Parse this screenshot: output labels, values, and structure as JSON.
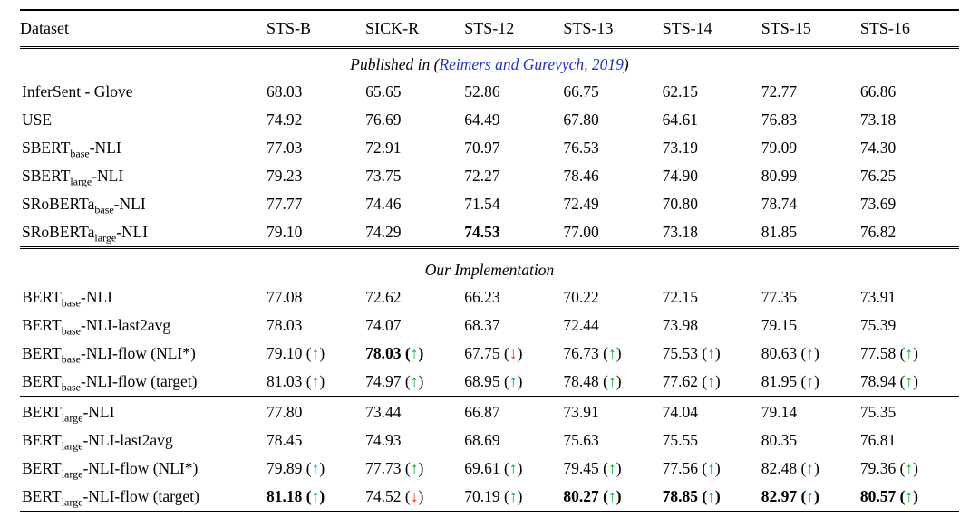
{
  "page": {
    "background": "#ffffff"
  },
  "colors": {
    "text": "#000000",
    "up_arrow": "#00b22d",
    "down_arrow": "#ff2200",
    "citation": "#2233cc"
  },
  "glyphs": {
    "up_arrow": "↑",
    "down_arrow": "↓"
  },
  "table": {
    "columns": [
      "Dataset",
      "STS-B",
      "SICK-R",
      "STS-12",
      "STS-13",
      "STS-14",
      "STS-15",
      "STS-16"
    ],
    "sections": [
      {
        "title_prefix": "Published in (",
        "citation": "Reimers and Gurevych, 2019",
        "title_suffix": ")",
        "groups": [
          {
            "rows": [
              {
                "label": {
                  "pre": "InferSent - Glove",
                  "sub": "",
                  "post": ""
                },
                "cells": [
                  {
                    "v": "68.03"
                  },
                  {
                    "v": "65.65"
                  },
                  {
                    "v": "52.86"
                  },
                  {
                    "v": "66.75"
                  },
                  {
                    "v": "62.15"
                  },
                  {
                    "v": "72.77"
                  },
                  {
                    "v": "66.86"
                  }
                ]
              },
              {
                "label": {
                  "pre": "USE",
                  "sub": "",
                  "post": ""
                },
                "cells": [
                  {
                    "v": "74.92"
                  },
                  {
                    "v": "76.69"
                  },
                  {
                    "v": "64.49"
                  },
                  {
                    "v": "67.80"
                  },
                  {
                    "v": "64.61"
                  },
                  {
                    "v": "76.83"
                  },
                  {
                    "v": "73.18"
                  }
                ]
              },
              {
                "label": {
                  "pre": "SBERT",
                  "sub": "base",
                  "post": "-NLI"
                },
                "cells": [
                  {
                    "v": "77.03"
                  },
                  {
                    "v": "72.91"
                  },
                  {
                    "v": "70.97"
                  },
                  {
                    "v": "76.53"
                  },
                  {
                    "v": "73.19"
                  },
                  {
                    "v": "79.09"
                  },
                  {
                    "v": "74.30"
                  }
                ]
              },
              {
                "label": {
                  "pre": "SBERT",
                  "sub": "large",
                  "post": "-NLI"
                },
                "cells": [
                  {
                    "v": "79.23"
                  },
                  {
                    "v": "73.75"
                  },
                  {
                    "v": "72.27"
                  },
                  {
                    "v": "78.46"
                  },
                  {
                    "v": "74.90"
                  },
                  {
                    "v": "80.99"
                  },
                  {
                    "v": "76.25"
                  }
                ]
              },
              {
                "label": {
                  "pre": "SRoBERTa",
                  "sub": "base",
                  "post": "-NLI"
                },
                "cells": [
                  {
                    "v": "77.77"
                  },
                  {
                    "v": "74.46"
                  },
                  {
                    "v": "71.54"
                  },
                  {
                    "v": "72.49"
                  },
                  {
                    "v": "70.80"
                  },
                  {
                    "v": "78.74"
                  },
                  {
                    "v": "73.69"
                  }
                ]
              },
              {
                "label": {
                  "pre": "SRoBERTa",
                  "sub": "large",
                  "post": "-NLI"
                },
                "cells": [
                  {
                    "v": "79.10"
                  },
                  {
                    "v": "74.29"
                  },
                  {
                    "v": "74.53",
                    "b": true
                  },
                  {
                    "v": "77.00"
                  },
                  {
                    "v": "73.18"
                  },
                  {
                    "v": "81.85"
                  },
                  {
                    "v": "76.82"
                  }
                ]
              }
            ]
          }
        ]
      },
      {
        "title_prefix": "Our Implementation",
        "citation": "",
        "title_suffix": "",
        "groups": [
          {
            "rows": [
              {
                "label": {
                  "pre": "BERT",
                  "sub": "base",
                  "post": "-NLI"
                },
                "cells": [
                  {
                    "v": "77.08"
                  },
                  {
                    "v": "72.62"
                  },
                  {
                    "v": "66.23"
                  },
                  {
                    "v": "70.22"
                  },
                  {
                    "v": "72.15"
                  },
                  {
                    "v": "77.35"
                  },
                  {
                    "v": "73.91"
                  }
                ]
              },
              {
                "label": {
                  "pre": "BERT",
                  "sub": "base",
                  "post": "-NLI-last2avg"
                },
                "cells": [
                  {
                    "v": "78.03"
                  },
                  {
                    "v": "74.07"
                  },
                  {
                    "v": "68.37"
                  },
                  {
                    "v": "72.44"
                  },
                  {
                    "v": "73.98"
                  },
                  {
                    "v": "79.15"
                  },
                  {
                    "v": "75.39"
                  }
                ]
              },
              {
                "label": {
                  "pre": "BERT",
                  "sub": "base",
                  "post": "-NLI-flow (NLI*)"
                },
                "cells": [
                  {
                    "v": "79.10",
                    "a": "up"
                  },
                  {
                    "v": "78.03",
                    "a": "up",
                    "b": true
                  },
                  {
                    "v": "67.75",
                    "a": "down"
                  },
                  {
                    "v": "76.73",
                    "a": "up"
                  },
                  {
                    "v": "75.53",
                    "a": "up"
                  },
                  {
                    "v": "80.63",
                    "a": "up"
                  },
                  {
                    "v": "77.58",
                    "a": "up"
                  }
                ]
              },
              {
                "label": {
                  "pre": "BERT",
                  "sub": "base",
                  "post": "-NLI-flow (target)"
                },
                "cells": [
                  {
                    "v": "81.03",
                    "a": "up"
                  },
                  {
                    "v": "74.97",
                    "a": "up"
                  },
                  {
                    "v": "68.95",
                    "a": "up"
                  },
                  {
                    "v": "78.48",
                    "a": "up"
                  },
                  {
                    "v": "77.62",
                    "a": "up"
                  },
                  {
                    "v": "81.95",
                    "a": "up"
                  },
                  {
                    "v": "78.94",
                    "a": "up"
                  }
                ]
              }
            ]
          },
          {
            "rows": [
              {
                "label": {
                  "pre": "BERT",
                  "sub": "large",
                  "post": "-NLI"
                },
                "cells": [
                  {
                    "v": "77.80"
                  },
                  {
                    "v": "73.44"
                  },
                  {
                    "v": "66.87"
                  },
                  {
                    "v": "73.91"
                  },
                  {
                    "v": "74.04"
                  },
                  {
                    "v": "79.14"
                  },
                  {
                    "v": "75.35"
                  }
                ]
              },
              {
                "label": {
                  "pre": "BERT",
                  "sub": "large",
                  "post": "-NLI-last2avg"
                },
                "cells": [
                  {
                    "v": "78.45"
                  },
                  {
                    "v": "74.93"
                  },
                  {
                    "v": "68.69"
                  },
                  {
                    "v": "75.63"
                  },
                  {
                    "v": "75.55"
                  },
                  {
                    "v": "80.35"
                  },
                  {
                    "v": "76.81"
                  }
                ]
              },
              {
                "label": {
                  "pre": "BERT",
                  "sub": "large",
                  "post": "-NLI-flow (NLI*)"
                },
                "cells": [
                  {
                    "v": "79.89",
                    "a": "up"
                  },
                  {
                    "v": "77.73",
                    "a": "up"
                  },
                  {
                    "v": "69.61",
                    "a": "up"
                  },
                  {
                    "v": "79.45",
                    "a": "up"
                  },
                  {
                    "v": "77.56",
                    "a": "up"
                  },
                  {
                    "v": "82.48",
                    "a": "up"
                  },
                  {
                    "v": "79.36",
                    "a": "up"
                  }
                ]
              },
              {
                "label": {
                  "pre": "BERT",
                  "sub": "large",
                  "post": "-NLI-flow (target)"
                },
                "cells": [
                  {
                    "v": "81.18",
                    "a": "up",
                    "b": true
                  },
                  {
                    "v": "74.52",
                    "a": "down"
                  },
                  {
                    "v": "70.19",
                    "a": "up"
                  },
                  {
                    "v": "80.27",
                    "a": "up",
                    "b": true
                  },
                  {
                    "v": "78.85",
                    "a": "up",
                    "b": true
                  },
                  {
                    "v": "82.97",
                    "a": "up",
                    "b": true
                  },
                  {
                    "v": "80.57",
                    "a": "up",
                    "b": true
                  }
                ]
              }
            ]
          }
        ]
      }
    ]
  }
}
